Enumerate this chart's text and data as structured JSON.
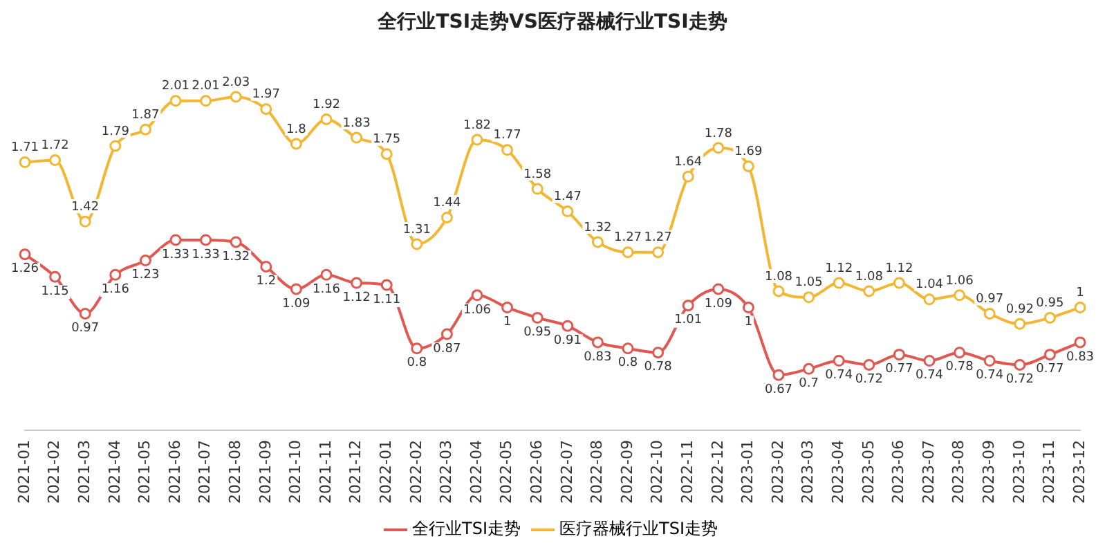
{
  "chart_data": {
    "type": "line",
    "title": "全行业TSI走势VS医疗器械行业TSI走势",
    "categories": [
      "2021-01",
      "2021-02",
      "2021-03",
      "2021-04",
      "2021-05",
      "2021-06",
      "2021-07",
      "2021-08",
      "2021-09",
      "2021-10",
      "2021-11",
      "2021-12",
      "2022-01",
      "2022-02",
      "2022-03",
      "2022-04",
      "2022-05",
      "2022-06",
      "2022-07",
      "2022-08",
      "2022-09",
      "2022-10",
      "2022-11",
      "2022-12",
      "2023-01",
      "2023-02",
      "2023-03",
      "2023-04",
      "2023-05",
      "2023-06",
      "2023-07",
      "2023-08",
      "2023-09",
      "2023-10",
      "2023-11",
      "2023-12"
    ],
    "series": [
      {
        "name": "全行业TSI走势",
        "color": "#e0584f",
        "values": [
          1.26,
          1.15,
          0.97,
          1.16,
          1.23,
          1.33,
          1.33,
          1.32,
          1.2,
          1.09,
          1.16,
          1.12,
          1.11,
          0.8,
          0.87,
          1.06,
          1,
          0.95,
          0.91,
          0.83,
          0.8,
          0.78,
          1.01,
          1.09,
          1,
          0.67,
          0.7,
          0.74,
          0.72,
          0.77,
          0.74,
          0.78,
          0.74,
          0.72,
          0.77,
          0.83
        ]
      },
      {
        "name": "医疗器械行业TSI走势",
        "color": "#f2b632",
        "values": [
          1.71,
          1.72,
          1.42,
          1.79,
          1.87,
          2.01,
          2.01,
          2.03,
          1.97,
          1.8,
          1.92,
          1.83,
          1.75,
          1.31,
          1.44,
          1.82,
          1.77,
          1.58,
          1.47,
          1.32,
          1.27,
          1.27,
          1.64,
          1.78,
          1.69,
          1.08,
          1.05,
          1.12,
          1.08,
          1.12,
          1.04,
          1.06,
          0.97,
          0.92,
          0.95,
          1
        ]
      }
    ],
    "data_labels": true,
    "legend": "bottom",
    "grid": false,
    "marker": "circle",
    "line_style": "solid"
  }
}
